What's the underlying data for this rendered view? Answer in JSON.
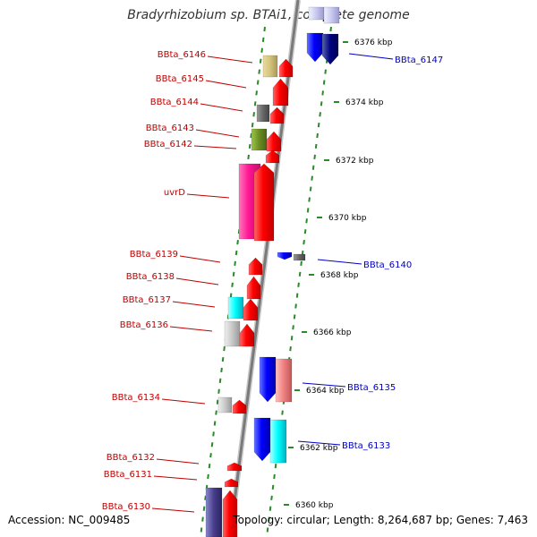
{
  "title": "Bradyrhizobium sp. BTAi1, complete genome",
  "footer": {
    "accession": "Accession: NC_009485",
    "summary": "Topology: circular; Length: 8,264,687 bp; Genes: 7,463"
  },
  "kbp_ticks": [
    "6376 kbp",
    "6374 kbp",
    "6372 kbp",
    "6370 kbp",
    "6368 kbp",
    "6366 kbp",
    "6364 kbp",
    "6362 kbp",
    "6360 kbp"
  ],
  "left_labels": [
    "BBta_6146",
    "BBta_6145",
    "BBta_6144",
    "BBta_6143",
    "BBta_6142",
    "uvrD",
    "BBta_6139",
    "BBta_6138",
    "BBta_6137",
    "BBta_6136",
    "BBta_6134",
    "BBta_6132",
    "BBta_6131",
    "BBta_6130"
  ],
  "right_labels": [
    "BBta_6147",
    "BBta_6140",
    "BBta_6135",
    "BBta_6133"
  ],
  "colors": {
    "forward_label": "#c00000",
    "reverse_label": "#0000c0",
    "backbone": "#8c8c8c",
    "dots": "#2a8a2a"
  }
}
